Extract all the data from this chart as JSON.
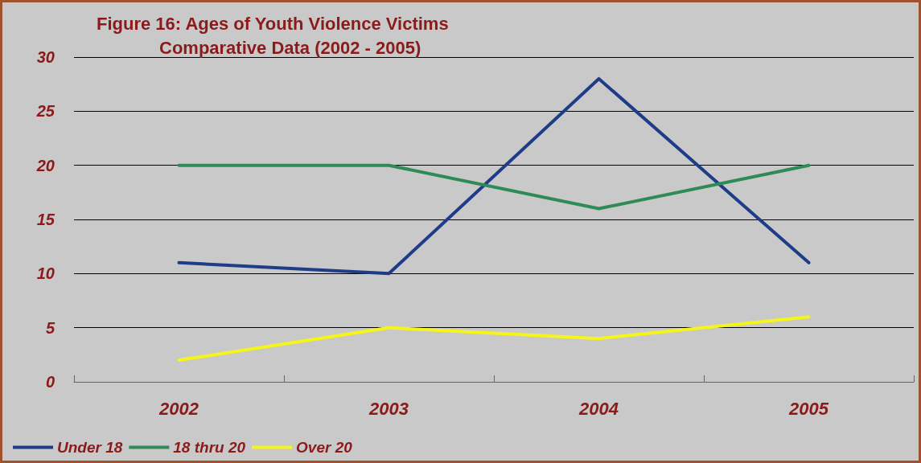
{
  "chart_data": {
    "type": "line",
    "title": "Figure 16: Ages of Youth Violence Victims",
    "subtitle": "Comparative Data (2002 - 2005)",
    "categories": [
      "2002",
      "2003",
      "2004",
      "2005"
    ],
    "series": [
      {
        "name": "Under 18",
        "color": "#1f3c88",
        "values": [
          11,
          10,
          28,
          11
        ]
      },
      {
        "name": "18 thru 20",
        "color": "#2e8b57",
        "values": [
          20,
          20,
          16,
          20
        ]
      },
      {
        "name": "Over 20",
        "color": "#f5f51a",
        "values": [
          2,
          5,
          4,
          6
        ]
      }
    ],
    "ylim": [
      0,
      30
    ],
    "yticks": [
      0,
      5,
      10,
      15,
      20,
      25,
      30
    ],
    "grid": "y",
    "legend": "bottom left",
    "marker": "none",
    "line_style": "solid"
  }
}
